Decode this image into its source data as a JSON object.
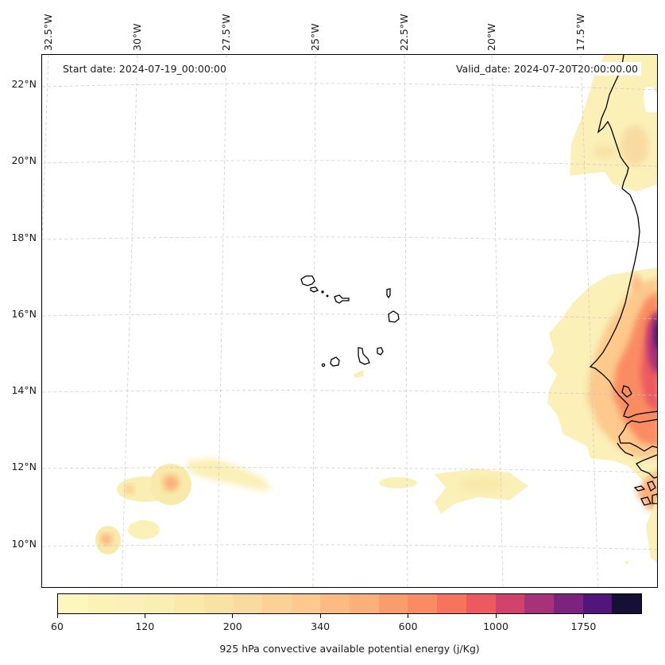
{
  "map": {
    "start_date": "Start date: 2024-07-19_00:00:00",
    "valid_date": "Valid_date: 2024-07-20T20:00:00.00",
    "longitude_labels": [
      "32.5°W",
      "30°W",
      "27.5°W",
      "25°W",
      "22.5°W",
      "20°W",
      "17.5°W"
    ],
    "latitude_labels": [
      "22°N",
      "20°N",
      "18°N",
      "16°N",
      "14°N",
      "12°N",
      "10°N"
    ],
    "extent": {
      "lon_min": -32.7,
      "lon_max": -15.0,
      "lat_min": 8.9,
      "lat_max": 22.8
    },
    "variable": "925 hPa convective available potential energy",
    "units": "j/Kg",
    "colormap": "magma_r",
    "features": [
      "Cape Verde islands",
      "West African coastline (Mauritania, Senegal, Gambia, Guinea-Bissau)"
    ],
    "cape_regions": [
      {
        "name": "Mauritania coast",
        "approx_lat_range": [
          19.0,
          22.8
        ],
        "peak_cape": 340
      },
      {
        "name": "Senegal / Gambia",
        "approx_lat_range": [
          11.0,
          17.0
        ],
        "peak_cape": 1750
      },
      {
        "name": "Atlantic cluster near 11.5N 28.5W",
        "peak_cape": 340
      },
      {
        "name": "Atlantic cluster near 10N 31W",
        "peak_cape": 340
      },
      {
        "name": "Atlantic band near 12N 26W",
        "peak_cape": 120
      },
      {
        "name": "Atlantic band near 11.5N 20.5W",
        "peak_cape": 120
      }
    ]
  },
  "colorbar": {
    "title": "925 hPa convective available potential energy (j/Kg)",
    "tick_labels": [
      "60",
      "120",
      "200",
      "340",
      "600",
      "1000",
      "1750"
    ],
    "tick_level_indices": [
      0,
      3,
      6,
      9,
      12,
      15,
      18
    ],
    "colors": [
      "#fcf7bd",
      "#fbf2b6",
      "#faf0b8",
      "#f9efb3",
      "#f9e9aa",
      "#f9e2a5",
      "#f9dba1",
      "#fdd195",
      "#fdc98c",
      "#fdbb82",
      "#fbb07a",
      "#fa9d6d",
      "#f98c62",
      "#f6735c",
      "#ec5a60",
      "#d1436c",
      "#a63279",
      "#7b237f",
      "#52167b",
      "#161037"
    ]
  }
}
